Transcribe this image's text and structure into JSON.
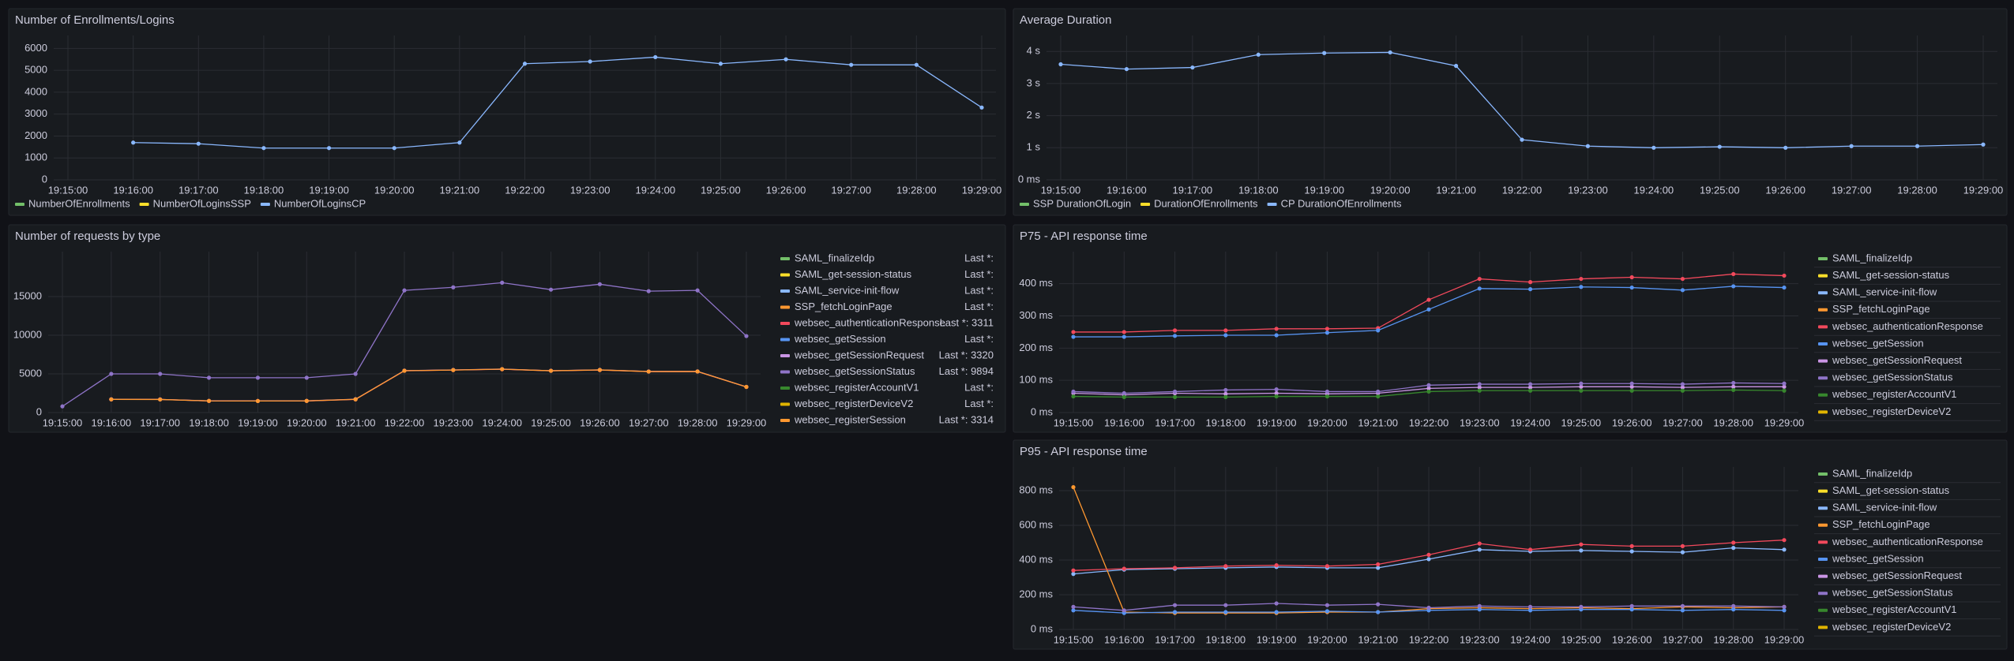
{
  "chart_data": [
    {
      "type": "line",
      "title": "Number of Enrollments/Logins",
      "legend": "bottom",
      "x": [
        "19:15:00",
        "19:16:00",
        "19:17:00",
        "19:18:00",
        "19:19:00",
        "19:20:00",
        "19:21:00",
        "19:22:00",
        "19:23:00",
        "19:24:00",
        "19:25:00",
        "19:26:00",
        "19:27:00",
        "19:28:00",
        "19:29:00"
      ],
      "ylim": [
        0,
        6300
      ],
      "yticks": [
        0,
        1000,
        2000,
        3000,
        4000,
        5000,
        6000
      ],
      "grid": true,
      "series": [
        {
          "name": "NumberOfEnrollments",
          "color": "#73bf69",
          "values": [
            null,
            null,
            null,
            null,
            null,
            null,
            null,
            null,
            null,
            null,
            null,
            null,
            null,
            null,
            null
          ]
        },
        {
          "name": "NumberOfLoginsSSP",
          "color": "#fade2a",
          "values": [
            null,
            null,
            null,
            null,
            null,
            null,
            null,
            null,
            null,
            null,
            null,
            null,
            null,
            null,
            null
          ]
        },
        {
          "name": "NumberOfLoginsCP",
          "color": "#8ab8ff",
          "values": [
            null,
            1700,
            1650,
            1450,
            1450,
            1450,
            1700,
            5300,
            5400,
            5600,
            5300,
            5500,
            5250,
            5250,
            3300
          ]
        }
      ]
    },
    {
      "type": "line",
      "title": "Average Duration",
      "legend": "bottom",
      "x": [
        "19:15:00",
        "19:16:00",
        "19:17:00",
        "19:18:00",
        "19:19:00",
        "19:20:00",
        "19:21:00",
        "19:22:00",
        "19:23:00",
        "19:24:00",
        "19:25:00",
        "19:26:00",
        "19:27:00",
        "19:28:00",
        "19:29:00"
      ],
      "ylim": [
        0,
        4.3
      ],
      "yticks": [
        {
          "value": 0,
          "label": "0 ms"
        },
        {
          "value": 1,
          "label": "1 s"
        },
        {
          "value": 2,
          "label": "2 s"
        },
        {
          "value": 3,
          "label": "3 s"
        },
        {
          "value": 4,
          "label": "4 s"
        }
      ],
      "grid": true,
      "series": [
        {
          "name": "SSP DurationOfLogin",
          "color": "#73bf69",
          "values": [
            null,
            null,
            null,
            null,
            null,
            null,
            null,
            null,
            null,
            null,
            null,
            null,
            null,
            null,
            null
          ]
        },
        {
          "name": "DurationOfEnrollments",
          "color": "#fade2a",
          "values": [
            null,
            null,
            null,
            null,
            null,
            null,
            null,
            null,
            null,
            null,
            null,
            null,
            null,
            null,
            null
          ]
        },
        {
          "name": "CP DurationOfEnrollments",
          "color": "#8ab8ff",
          "values": [
            3.6,
            3.45,
            3.5,
            3.9,
            3.95,
            3.97,
            3.55,
            1.25,
            1.05,
            1.0,
            1.03,
            1.0,
            1.05,
            1.05,
            1.1
          ]
        }
      ]
    },
    {
      "type": "line",
      "title": "Number of requests by type",
      "legend": "right",
      "x": [
        "19:15:00",
        "19:16:00",
        "19:17:00",
        "19:18:00",
        "19:19:00",
        "19:20:00",
        "19:21:00",
        "19:22:00",
        "19:23:00",
        "19:24:00",
        "19:25:00",
        "19:26:00",
        "19:27:00",
        "19:28:00",
        "19:29:00"
      ],
      "ylim": [
        0,
        20000
      ],
      "yticks": [
        0,
        5000,
        10000,
        15000
      ],
      "grid": true,
      "series": [
        {
          "name": "SAML_finalizeIdp",
          "color": "#73bf69",
          "legend_text": "Last *:",
          "values": [
            null,
            null,
            null,
            null,
            null,
            null,
            null,
            null,
            null,
            null,
            null,
            null,
            null,
            null,
            null
          ]
        },
        {
          "name": "SAML_get-session-status",
          "color": "#fade2a",
          "legend_text": "Last *:",
          "values": [
            null,
            null,
            null,
            null,
            null,
            null,
            null,
            null,
            null,
            null,
            null,
            null,
            null,
            null,
            null
          ]
        },
        {
          "name": "SAML_service-init-flow",
          "color": "#8ab8ff",
          "legend_text": "Last *:",
          "values": [
            null,
            null,
            null,
            null,
            null,
            null,
            null,
            null,
            null,
            null,
            null,
            null,
            null,
            null,
            null
          ]
        },
        {
          "name": "SSP_fetchLoginPage",
          "color": "#ff9830",
          "legend_text": "Last *:",
          "values": [
            null,
            null,
            null,
            null,
            null,
            null,
            null,
            null,
            null,
            null,
            null,
            null,
            null,
            null,
            null
          ]
        },
        {
          "name": "websec_authenticationResponse",
          "color": "#f2495c",
          "legend_text": "Last *: 3311",
          "values": [
            null,
            1700,
            1700,
            1500,
            1500,
            1500,
            1700,
            5400,
            5500,
            5600,
            5400,
            5500,
            5300,
            5300,
            3311
          ]
        },
        {
          "name": "websec_getSession",
          "color": "#5794f2",
          "legend_text": "Last *:",
          "values": [
            null,
            null,
            null,
            null,
            null,
            null,
            null,
            null,
            null,
            null,
            null,
            null,
            null,
            null,
            null
          ]
        },
        {
          "name": "websec_getSessionRequest",
          "color": "#ca95e5",
          "legend_text": "Last *: 3320",
          "values": [
            null,
            1710,
            1700,
            1510,
            1500,
            1510,
            1720,
            5420,
            5510,
            5620,
            5410,
            5520,
            5310,
            5320,
            3320
          ]
        },
        {
          "name": "websec_getSessionStatus",
          "color": "#8f74c8",
          "legend_text": "Last *: 9894",
          "values": [
            800,
            5000,
            5000,
            4500,
            4500,
            4500,
            5000,
            15800,
            16200,
            16800,
            15900,
            16600,
            15700,
            15800,
            9894
          ]
        },
        {
          "name": "websec_registerAccountV1",
          "color": "#37872d",
          "legend_text": "Last *:",
          "values": [
            null,
            null,
            null,
            null,
            null,
            null,
            null,
            null,
            null,
            null,
            null,
            null,
            null,
            null,
            null
          ]
        },
        {
          "name": "websec_registerDeviceV2",
          "color": "#e0b400",
          "legend_text": "Last *:",
          "values": [
            null,
            null,
            null,
            null,
            null,
            null,
            null,
            null,
            null,
            null,
            null,
            null,
            null,
            null,
            null
          ]
        },
        {
          "name": "websec_registerSession",
          "color": "#ff9830",
          "legend_text": "Last *: 3314",
          "values": [
            null,
            1705,
            1690,
            1505,
            1490,
            1505,
            1710,
            5410,
            5500,
            5610,
            5400,
            5510,
            5300,
            5310,
            3314
          ]
        }
      ]
    },
    {
      "type": "line",
      "title": "P75 - API response time",
      "legend": "right",
      "x": [
        "19:15:00",
        "19:16:00",
        "19:17:00",
        "19:18:00",
        "19:19:00",
        "19:20:00",
        "19:21:00",
        "19:22:00",
        "19:23:00",
        "19:24:00",
        "19:25:00",
        "19:26:00",
        "19:27:00",
        "19:28:00",
        "19:29:00"
      ],
      "ylim": [
        0,
        480
      ],
      "yticks": [
        {
          "value": 0,
          "label": "0 ms"
        },
        {
          "value": 100,
          "label": "100 ms"
        },
        {
          "value": 200,
          "label": "200 ms"
        },
        {
          "value": 300,
          "label": "300 ms"
        },
        {
          "value": 400,
          "label": "400 ms"
        }
      ],
      "grid": true,
      "series": [
        {
          "name": "SAML_finalizeIdp",
          "color": "#73bf69",
          "values": [
            null,
            null,
            null,
            null,
            null,
            null,
            null,
            null,
            null,
            null,
            null,
            null,
            null,
            null,
            null
          ]
        },
        {
          "name": "SAML_get-session-status",
          "color": "#fade2a",
          "values": [
            null,
            null,
            null,
            null,
            null,
            null,
            null,
            null,
            null,
            null,
            null,
            null,
            null,
            null,
            null
          ]
        },
        {
          "name": "SAML_service-init-flow",
          "color": "#8ab8ff",
          "values": [
            null,
            null,
            null,
            null,
            null,
            null,
            null,
            null,
            null,
            null,
            null,
            null,
            null,
            null,
            null
          ]
        },
        {
          "name": "SSP_fetchLoginPage",
          "color": "#ff9830",
          "values": [
            null,
            null,
            null,
            null,
            null,
            null,
            null,
            null,
            null,
            null,
            null,
            null,
            null,
            null,
            null
          ]
        },
        {
          "name": "websec_authenticationResponse",
          "color": "#f2495c",
          "values": [
            250,
            250,
            255,
            255,
            260,
            260,
            262,
            350,
            415,
            405,
            415,
            420,
            415,
            430,
            425
          ]
        },
        {
          "name": "websec_getSession",
          "color": "#5794f2",
          "values": [
            235,
            235,
            238,
            240,
            240,
            248,
            255,
            320,
            385,
            383,
            390,
            388,
            380,
            392,
            388
          ]
        },
        {
          "name": "websec_getSessionRequest",
          "color": "#ca95e5",
          "values": [
            60,
            55,
            60,
            58,
            60,
            58,
            60,
            75,
            78,
            78,
            80,
            80,
            78,
            80,
            80
          ]
        },
        {
          "name": "websec_getSessionStatus",
          "color": "#8f74c8",
          "values": [
            65,
            60,
            65,
            70,
            72,
            65,
            65,
            85,
            88,
            88,
            90,
            90,
            88,
            92,
            90
          ]
        },
        {
          "name": "websec_registerAccountV1",
          "color": "#37872d",
          "values": [
            50,
            48,
            48,
            48,
            50,
            50,
            50,
            65,
            68,
            68,
            68,
            68,
            68,
            70,
            68
          ]
        },
        {
          "name": "websec_registerDeviceV2",
          "color": "#e0b400",
          "values": [
            null,
            null,
            null,
            null,
            null,
            null,
            null,
            null,
            null,
            null,
            null,
            null,
            null,
            null,
            null
          ]
        }
      ]
    },
    {
      "type": "line",
      "title": "P95 - API response time",
      "legend": "right",
      "x": [
        "19:15:00",
        "19:16:00",
        "19:17:00",
        "19:18:00",
        "19:19:00",
        "19:20:00",
        "19:21:00",
        "19:22:00",
        "19:23:00",
        "19:24:00",
        "19:25:00",
        "19:26:00",
        "19:27:00",
        "19:28:00",
        "19:29:00"
      ],
      "ylim": [
        0,
        900
      ],
      "yticks": [
        {
          "value": 0,
          "label": "0 ms"
        },
        {
          "value": 200,
          "label": "200 ms"
        },
        {
          "value": 400,
          "label": "400 ms"
        },
        {
          "value": 600,
          "label": "600 ms"
        },
        {
          "value": 800,
          "label": "800 ms"
        }
      ],
      "grid": true,
      "series": [
        {
          "name": "SAML_finalizeIdp",
          "color": "#73bf69",
          "values": [
            null,
            null,
            null,
            null,
            null,
            null,
            null,
            null,
            null,
            null,
            null,
            null,
            null,
            null,
            null
          ]
        },
        {
          "name": "SAML_get-session-status",
          "color": "#fade2a",
          "values": [
            null,
            null,
            null,
            null,
            null,
            null,
            null,
            null,
            null,
            null,
            null,
            null,
            null,
            null,
            null
          ]
        },
        {
          "name": "SAML_service-init-flow",
          "color": "#8ab8ff",
          "values": [
            320,
            345,
            350,
            355,
            360,
            355,
            355,
            405,
            460,
            450,
            455,
            450,
            445,
            470,
            460
          ]
        },
        {
          "name": "SSP_fetchLoginPage",
          "color": "#ff9830",
          "values": [
            820,
            100,
            95,
            95,
            95,
            100,
            100,
            120,
            125,
            120,
            125,
            120,
            130,
            125,
            130
          ]
        },
        {
          "name": "websec_authenticationResponse",
          "color": "#f2495c",
          "values": [
            340,
            350,
            355,
            365,
            370,
            365,
            375,
            430,
            495,
            460,
            490,
            480,
            480,
            500,
            515
          ]
        },
        {
          "name": "websec_getSession",
          "color": "#5794f2",
          "values": [
            110,
            95,
            100,
            100,
            100,
            105,
            100,
            110,
            115,
            110,
            115,
            115,
            110,
            115,
            110
          ]
        },
        {
          "name": "websec_getSessionRequest",
          "color": "#ca95e5",
          "values": [
            null,
            null,
            null,
            null,
            null,
            null,
            null,
            null,
            null,
            null,
            null,
            null,
            null,
            null,
            null
          ]
        },
        {
          "name": "websec_getSessionStatus",
          "color": "#8f74c8",
          "values": [
            130,
            110,
            140,
            140,
            150,
            140,
            145,
            125,
            135,
            130,
            130,
            135,
            135,
            135,
            130
          ]
        },
        {
          "name": "websec_registerAccountV1",
          "color": "#37872d",
          "values": [
            null,
            null,
            null,
            null,
            null,
            null,
            null,
            null,
            null,
            null,
            null,
            null,
            null,
            null,
            null
          ]
        },
        {
          "name": "websec_registerDeviceV2",
          "color": "#e0b400",
          "values": [
            null,
            null,
            null,
            null,
            null,
            null,
            null,
            null,
            null,
            null,
            null,
            null,
            null,
            null,
            null
          ]
        }
      ]
    }
  ]
}
